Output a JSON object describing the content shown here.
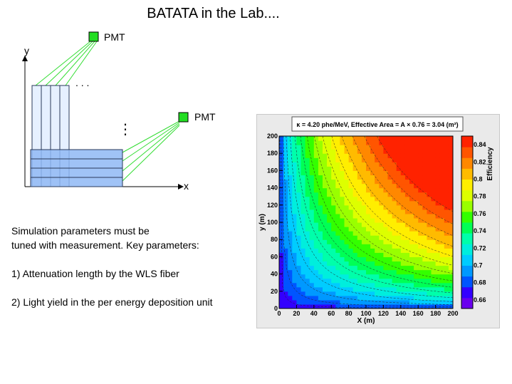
{
  "title": "BATATA in the Lab....",
  "diagram": {
    "pmt_top_label": "PMT",
    "pmt_right_label": "PMT",
    "axis_y_label": "y",
    "axis_x_label": "x",
    "dots_horizontal": ". . .",
    "dots_vertical": "⋮",
    "colors": {
      "pmt": "#22dd22",
      "fiber_lines": "#33dd33",
      "bar_vertical": "#e6f0ff",
      "bar_horizontal": "#8fb8f5",
      "bar_border": "#2a3a5a"
    }
  },
  "notes": {
    "line1": "Simulation parameters must be",
    "line2": "tuned with measurement. Key parameters:",
    "item1": "1) Attenuation length by the WLS fiber",
    "item2": "2) Light yield in the per energy deposition unit"
  },
  "chart_data": {
    "type": "heatmap",
    "title": "κ = 4.20 phe/MeV, Effective Area = A × 0.76 = 3.04 (m²)",
    "xlabel": "X (m)",
    "ylabel": "y (m)",
    "zlabel": "Efficiency",
    "xlim": [
      0,
      200
    ],
    "ylim": [
      0,
      200
    ],
    "xticks": [
      "0",
      "20",
      "40",
      "60",
      "80",
      "100",
      "120",
      "140",
      "160",
      "180",
      "200"
    ],
    "yticks": [
      "0",
      "20",
      "40",
      "60",
      "80",
      "100",
      "120",
      "140",
      "160",
      "180",
      "200"
    ],
    "colorbar_ticks": [
      "0.84",
      "0.82",
      "0.8",
      "0.78",
      "0.76",
      "0.74",
      "0.72",
      "0.7",
      "0.68",
      "0.66"
    ],
    "zrange": [
      0.65,
      0.85
    ]
  }
}
